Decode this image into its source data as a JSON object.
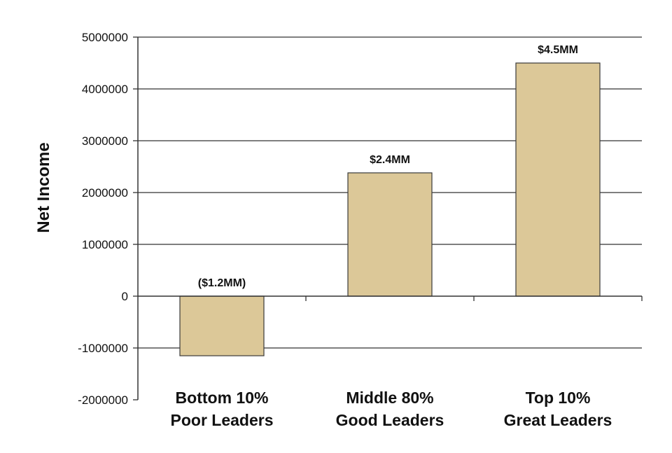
{
  "chart_data": {
    "type": "bar",
    "title": "",
    "xlabel": "",
    "ylabel": "Net Income",
    "ylim": [
      -2000000,
      5000000
    ],
    "yticks": [
      5000000,
      4000000,
      3000000,
      2000000,
      1000000,
      0,
      -1000000,
      -2000000
    ],
    "grid": true,
    "categories": [
      [
        "Bottom 10%",
        "Poor Leaders"
      ],
      [
        "Middle 80%",
        "Good Leaders"
      ],
      [
        "Top 10%",
        "Great Leaders"
      ]
    ],
    "values": [
      -1150000,
      2380000,
      4500000
    ],
    "data_labels": [
      "($1.2MM)",
      "$2.4MM",
      "$4.5MM"
    ],
    "colors": {
      "bar": "#dcc898",
      "bar_edge": "#3a3a3a",
      "grid": "#333333",
      "axis": "#333333"
    }
  }
}
